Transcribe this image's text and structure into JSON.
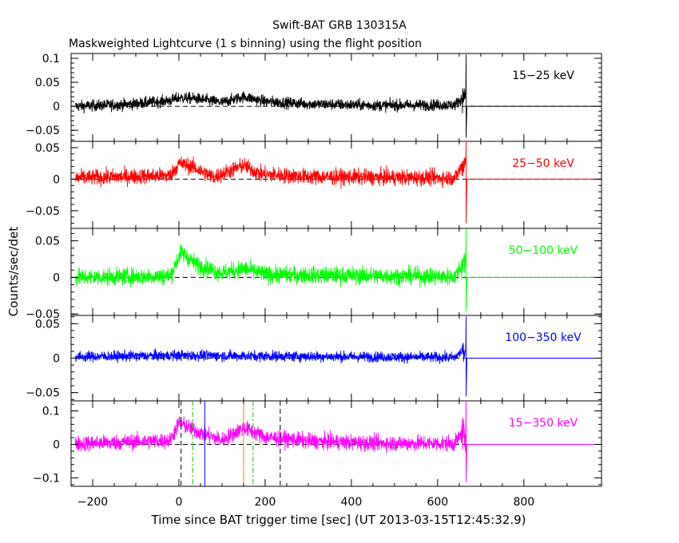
{
  "chart_data": {
    "type": "line",
    "title": "Swift-BAT GRB 130315A",
    "subtitle": "Maskweighted Lightcurve (1 s binning) using the flight position",
    "xlabel": "Time since BAT trigger time [sec] (UT 2013-03-15T12:45:32.9)",
    "ylabel": "Counts/sec/det",
    "xlim": [
      -250,
      980
    ],
    "x_ticks": [
      -200,
      0,
      200,
      400,
      600,
      800
    ],
    "x_tick_labels": [
      "−200",
      "0",
      "200",
      "400",
      "600",
      "800"
    ],
    "data_end": 665,
    "panels": [
      {
        "band": "15−25 keV",
        "color": "#000000",
        "ylim": [
          -0.073,
          0.11
        ],
        "y_ticks": [
          -0.05,
          0,
          0.05,
          0.1
        ],
        "y_tick_labels": [
          "−0.05",
          "0",
          "0.05",
          "0.1"
        ],
        "noise": 0.0085,
        "profile": [
          [
            -240,
            0
          ],
          [
            -120,
            0.004
          ],
          [
            -20,
            0.012
          ],
          [
            0,
            0.018
          ],
          [
            40,
            0.016
          ],
          [
            100,
            0.008
          ],
          [
            150,
            0.02
          ],
          [
            200,
            0.01
          ],
          [
            300,
            0.005
          ],
          [
            450,
            0.002
          ],
          [
            640,
            0.003
          ],
          [
            660,
            0.02
          ]
        ]
      },
      {
        "band": "25−50 keV",
        "color": "#ff0000",
        "ylim": [
          -0.078,
          0.06
        ],
        "y_ticks": [
          -0.05,
          0,
          0.05
        ],
        "y_tick_labels": [
          "−0.05",
          "0",
          "0.05"
        ],
        "noise": 0.009,
        "profile": [
          [
            -240,
            0.002
          ],
          [
            -20,
            0.006
          ],
          [
            0,
            0.025
          ],
          [
            30,
            0.02
          ],
          [
            80,
            0.003
          ],
          [
            150,
            0.022
          ],
          [
            190,
            0.008
          ],
          [
            300,
            0.004
          ],
          [
            640,
            0.002
          ],
          [
            660,
            0.025
          ]
        ]
      },
      {
        "band": "50−100 keV",
        "color": "#00ff00",
        "ylim": [
          -0.052,
          0.067
        ],
        "y_ticks": [
          -0.05,
          0,
          0.05
        ],
        "y_tick_labels": [
          "−0.05",
          "0",
          "0.05"
        ],
        "noise": 0.0085,
        "profile": [
          [
            -240,
            0
          ],
          [
            -20,
            0.002
          ],
          [
            5,
            0.035
          ],
          [
            40,
            0.018
          ],
          [
            100,
            0.006
          ],
          [
            150,
            0.012
          ],
          [
            200,
            0.004
          ],
          [
            640,
            0.001
          ],
          [
            660,
            0.02
          ]
        ]
      },
      {
        "band": "100−350 keV",
        "color": "#0000ff",
        "ylim": [
          -0.062,
          0.062
        ],
        "y_ticks": [
          -0.05,
          0,
          0.05
        ],
        "y_tick_labels": [
          "−0.05",
          "0",
          "0.05"
        ],
        "noise": 0.0055,
        "profile": [
          [
            -240,
            0.002
          ],
          [
            0,
            0.004
          ],
          [
            640,
            0.001
          ],
          [
            660,
            0.012
          ]
        ]
      },
      {
        "band": "15−350 keV",
        "color": "#ff00ff",
        "ylim": [
          -0.125,
          0.13
        ],
        "y_ticks": [
          -0.1,
          0,
          0.1
        ],
        "y_tick_labels": [
          "−0.1",
          "0",
          "0.1"
        ],
        "noise": 0.017,
        "profile": [
          [
            -240,
            0.002
          ],
          [
            -20,
            0.012
          ],
          [
            0,
            0.065
          ],
          [
            40,
            0.04
          ],
          [
            100,
            0.012
          ],
          [
            150,
            0.05
          ],
          [
            200,
            0.022
          ],
          [
            300,
            0.01
          ],
          [
            450,
            0.004
          ],
          [
            640,
            0.003
          ],
          [
            660,
            0.04
          ]
        ],
        "markers": [
          {
            "x": 5,
            "color": "#000000",
            "style": "dashed",
            "name": "t-start-dashed"
          },
          {
            "x": 235,
            "color": "#000000",
            "style": "dashed",
            "name": "t-end-dashed"
          },
          {
            "x": 32,
            "color": "#00cc00",
            "style": "dashdot",
            "name": "t90-start"
          },
          {
            "x": 172,
            "color": "#00cc00",
            "style": "dashdot",
            "name": "t90-end"
          },
          {
            "x": 60,
            "color": "#0000ff",
            "style": "solid",
            "name": "t50-start"
          },
          {
            "x": 150,
            "color": "#ff8000",
            "style": "solid",
            "name": "t50-end"
          }
        ]
      }
    ]
  }
}
